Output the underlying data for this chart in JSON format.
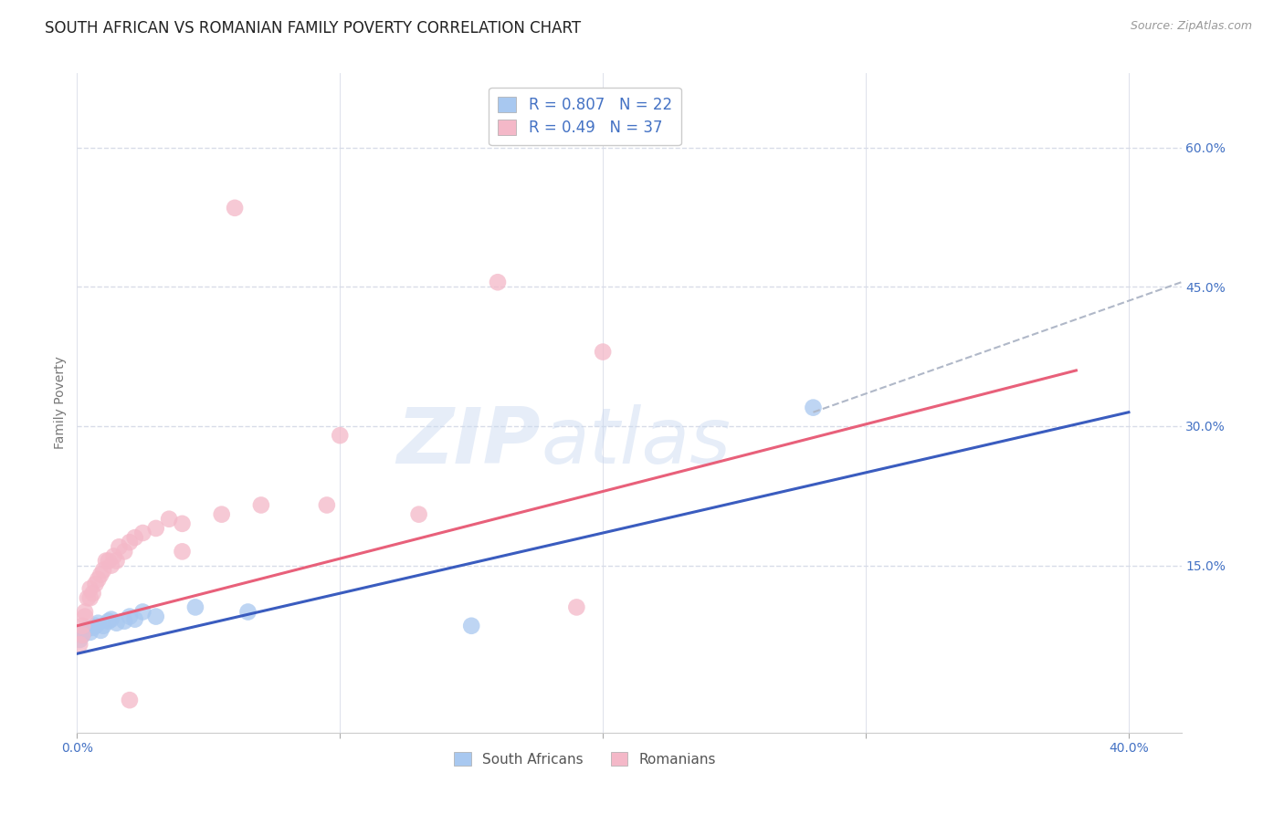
{
  "title": "SOUTH AFRICAN VS ROMANIAN FAMILY POVERTY CORRELATION CHART",
  "source": "Source: ZipAtlas.com",
  "ylabel": "Family Poverty",
  "xlim": [
    0.0,
    0.42
  ],
  "ylim": [
    -0.03,
    0.68
  ],
  "x_ticks": [
    0.0,
    0.1,
    0.2,
    0.3,
    0.4
  ],
  "x_tick_labels": [
    "0.0%",
    "",
    "",
    "",
    "40.0%"
  ],
  "y_ticks_right": [
    0.15,
    0.3,
    0.45,
    0.6
  ],
  "y_tick_labels_right": [
    "15.0%",
    "30.0%",
    "45.0%",
    "60.0%"
  ],
  "south_african_color": "#a8c8f0",
  "romanian_color": "#f4b8c8",
  "south_african_line_color": "#3a5cbf",
  "romanian_line_color": "#e8607a",
  "dashed_line_color": "#b0b8c8",
  "south_african_R": 0.807,
  "south_african_N": 22,
  "romanian_R": 0.49,
  "romanian_N": 37,
  "south_african_points": [
    [
      0.001,
      0.07
    ],
    [
      0.002,
      0.075
    ],
    [
      0.003,
      0.08
    ],
    [
      0.004,
      0.082
    ],
    [
      0.005,
      0.078
    ],
    [
      0.006,
      0.083
    ],
    [
      0.007,
      0.085
    ],
    [
      0.008,
      0.088
    ],
    [
      0.009,
      0.08
    ],
    [
      0.01,
      0.085
    ],
    [
      0.012,
      0.09
    ],
    [
      0.013,
      0.092
    ],
    [
      0.015,
      0.088
    ],
    [
      0.018,
      0.09
    ],
    [
      0.02,
      0.095
    ],
    [
      0.022,
      0.092
    ],
    [
      0.025,
      0.1
    ],
    [
      0.03,
      0.095
    ],
    [
      0.045,
      0.105
    ],
    [
      0.065,
      0.1
    ],
    [
      0.15,
      0.085
    ],
    [
      0.28,
      0.32
    ]
  ],
  "romanian_points": [
    [
      0.001,
      0.065
    ],
    [
      0.002,
      0.075
    ],
    [
      0.002,
      0.085
    ],
    [
      0.003,
      0.095
    ],
    [
      0.003,
      0.1
    ],
    [
      0.004,
      0.115
    ],
    [
      0.005,
      0.115
    ],
    [
      0.005,
      0.125
    ],
    [
      0.006,
      0.12
    ],
    [
      0.007,
      0.13
    ],
    [
      0.008,
      0.135
    ],
    [
      0.009,
      0.14
    ],
    [
      0.01,
      0.145
    ],
    [
      0.011,
      0.155
    ],
    [
      0.012,
      0.155
    ],
    [
      0.013,
      0.15
    ],
    [
      0.014,
      0.16
    ],
    [
      0.015,
      0.155
    ],
    [
      0.016,
      0.17
    ],
    [
      0.018,
      0.165
    ],
    [
      0.02,
      0.175
    ],
    [
      0.022,
      0.18
    ],
    [
      0.025,
      0.185
    ],
    [
      0.03,
      0.19
    ],
    [
      0.035,
      0.2
    ],
    [
      0.04,
      0.195
    ],
    [
      0.055,
      0.205
    ],
    [
      0.07,
      0.215
    ],
    [
      0.095,
      0.215
    ],
    [
      0.13,
      0.205
    ],
    [
      0.04,
      0.165
    ],
    [
      0.16,
      0.455
    ],
    [
      0.06,
      0.535
    ],
    [
      0.02,
      0.005
    ],
    [
      0.19,
      0.105
    ],
    [
      0.2,
      0.38
    ],
    [
      0.1,
      0.29
    ]
  ],
  "sa_line": {
    "x0": 0.0,
    "y0": 0.055,
    "x1": 0.4,
    "y1": 0.315
  },
  "ro_line": {
    "x0": 0.0,
    "y0": 0.085,
    "x1": 0.38,
    "y1": 0.36
  },
  "dash_line": {
    "x0": 0.28,
    "y0": 0.315,
    "x1": 0.42,
    "y1": 0.455
  },
  "watermark_zip": "ZIP",
  "watermark_atlas": "atlas",
  "bg_color": "#ffffff",
  "grid_color": "#d8dce8",
  "legend_text_color": "#4472c4",
  "title_fontsize": 12,
  "axis_label_fontsize": 10,
  "tick_fontsize": 10,
  "marker_size": 180
}
